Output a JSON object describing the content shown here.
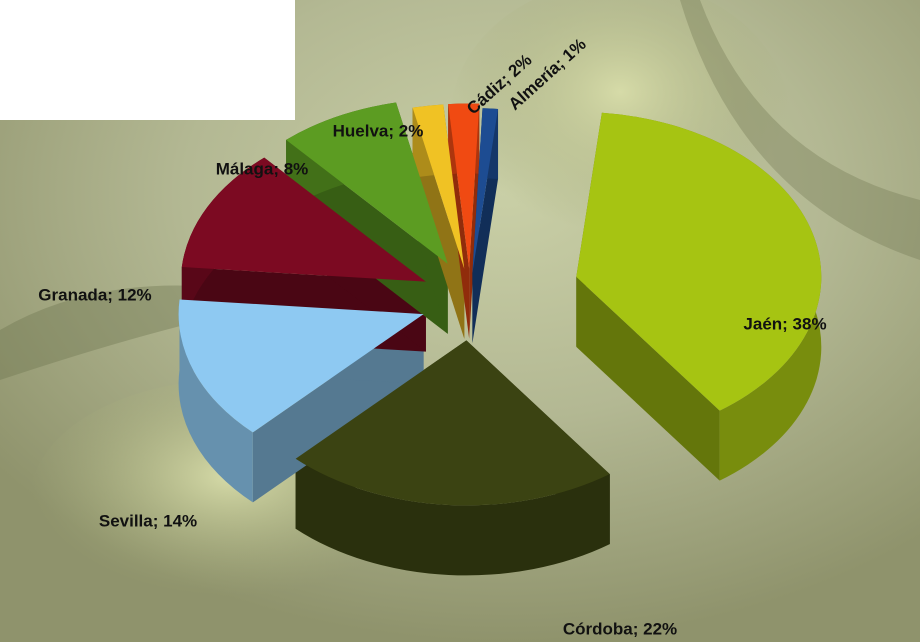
{
  "chart_data": {
    "type": "pie",
    "values": [
      38,
      22,
      14,
      12,
      8,
      2,
      2,
      1
    ],
    "value_labels": [
      "Jaén; 38%",
      "Córdoba; 22%",
      "Sevilla; 14%",
      "Granada; 12%",
      "Málaga; 8%",
      "Huelva; 2%",
      "Cádiz; 2%",
      "Almería; 1%"
    ],
    "colors": [
      "#a6c412",
      "#3b4312",
      "#8ec9f2",
      "#7c0a22",
      "#5c9c22",
      "#f0c224",
      "#f04a12",
      "#1d4c92"
    ]
  }
}
